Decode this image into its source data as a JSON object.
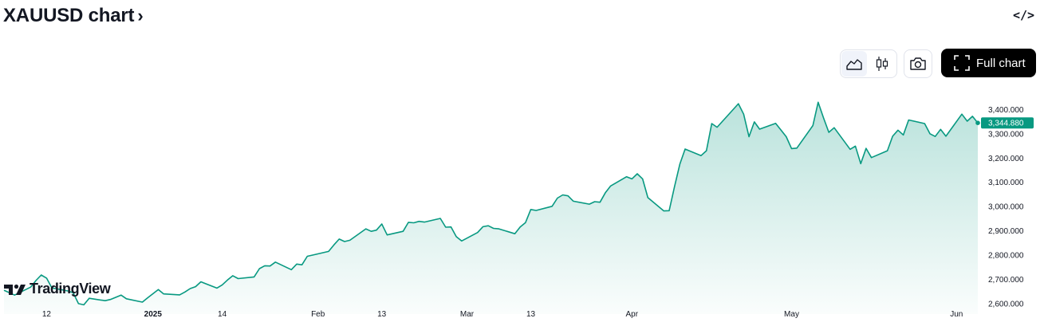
{
  "header": {
    "title": "XAUUSD chart",
    "title_chevron": "›",
    "embed_label": "</>"
  },
  "toolbar": {
    "chart_style_icons": [
      "area-chart-icon",
      "candlestick-icon"
    ],
    "screenshot_icon": "camera-icon",
    "full_chart_label": "Full chart"
  },
  "watermark": {
    "text": "TradingView",
    "logo_icon": "tradingview-logo-icon"
  },
  "colors": {
    "line": "#089981",
    "area_top": "#089981",
    "badge": "#089981",
    "button_bg": "#000000"
  },
  "chart_data": {
    "type": "area",
    "symbol": "XAUUSD",
    "ylim": [
      2570,
      3490
    ],
    "y_ticks": [
      2600,
      2700,
      2800,
      2900,
      3000,
      3100,
      3200,
      3300,
      3400
    ],
    "y_tick_labels": [
      "2,600.000",
      "2,700.000",
      "2,800.000",
      "2,900.000",
      "3,000.000",
      "3,100.000",
      "3,200.000",
      "3,300.000",
      "3,400.000"
    ],
    "x_tick_labels": [
      "12",
      "2025",
      "14",
      "Feb",
      "13",
      "Mar",
      "13",
      "Apr",
      "May",
      "Jun"
    ],
    "x_tick_dates": [
      "2024-12-12",
      "2025-01-01",
      "2025-01-14",
      "2025-02-01",
      "2025-02-13",
      "2025-03-01",
      "2025-03-13",
      "2025-04-01",
      "2025-05-01",
      "2025-06-01"
    ],
    "bold_x_labels": [
      "2025"
    ],
    "last_price": 3344.88,
    "last_price_label": "3,344.880",
    "series": [
      {
        "points": [
          [
            "2024-12-04",
            2655
          ],
          [
            "2024-12-06",
            2635
          ],
          [
            "2024-12-09",
            2668
          ],
          [
            "2024-12-10",
            2695
          ],
          [
            "2024-12-11",
            2718
          ],
          [
            "2024-12-12",
            2705
          ],
          [
            "2024-12-13",
            2665
          ],
          [
            "2024-12-16",
            2652
          ],
          [
            "2024-12-17",
            2645
          ],
          [
            "2024-12-18",
            2600
          ],
          [
            "2024-12-19",
            2595
          ],
          [
            "2024-12-20",
            2622
          ],
          [
            "2024-12-23",
            2612
          ],
          [
            "2024-12-24",
            2617
          ],
          [
            "2024-12-26",
            2635
          ],
          [
            "2024-12-27",
            2620
          ],
          [
            "2024-12-30",
            2606
          ],
          [
            "2024-12-31",
            2624
          ],
          [
            "2025-01-02",
            2658
          ],
          [
            "2025-01-03",
            2640
          ],
          [
            "2025-01-06",
            2636
          ],
          [
            "2025-01-07",
            2648
          ],
          [
            "2025-01-08",
            2662
          ],
          [
            "2025-01-09",
            2670
          ],
          [
            "2025-01-10",
            2690
          ],
          [
            "2025-01-13",
            2664
          ],
          [
            "2025-01-14",
            2677
          ],
          [
            "2025-01-15",
            2697
          ],
          [
            "2025-01-16",
            2715
          ],
          [
            "2025-01-17",
            2703
          ],
          [
            "2025-01-20",
            2710
          ],
          [
            "2025-01-21",
            2744
          ],
          [
            "2025-01-22",
            2756
          ],
          [
            "2025-01-23",
            2755
          ],
          [
            "2025-01-24",
            2771
          ],
          [
            "2025-01-27",
            2740
          ],
          [
            "2025-01-28",
            2763
          ],
          [
            "2025-01-29",
            2760
          ],
          [
            "2025-01-30",
            2795
          ],
          [
            "2025-01-31",
            2800
          ],
          [
            "2025-02-03",
            2815
          ],
          [
            "2025-02-04",
            2842
          ],
          [
            "2025-02-05",
            2866
          ],
          [
            "2025-02-06",
            2856
          ],
          [
            "2025-02-07",
            2861
          ],
          [
            "2025-02-10",
            2908
          ],
          [
            "2025-02-11",
            2898
          ],
          [
            "2025-02-12",
            2903
          ],
          [
            "2025-02-13",
            2928
          ],
          [
            "2025-02-14",
            2883
          ],
          [
            "2025-02-17",
            2898
          ],
          [
            "2025-02-18",
            2935
          ],
          [
            "2025-02-19",
            2933
          ],
          [
            "2025-02-20",
            2939
          ],
          [
            "2025-02-21",
            2936
          ],
          [
            "2025-02-24",
            2951
          ],
          [
            "2025-02-25",
            2915
          ],
          [
            "2025-02-26",
            2916
          ],
          [
            "2025-02-27",
            2876
          ],
          [
            "2025-02-28",
            2858
          ],
          [
            "2025-03-03",
            2893
          ],
          [
            "2025-03-04",
            2917
          ],
          [
            "2025-03-05",
            2921
          ],
          [
            "2025-03-06",
            2910
          ],
          [
            "2025-03-07",
            2908
          ],
          [
            "2025-03-10",
            2888
          ],
          [
            "2025-03-11",
            2916
          ],
          [
            "2025-03-12",
            2934
          ],
          [
            "2025-03-13",
            2988
          ],
          [
            "2025-03-14",
            2984
          ],
          [
            "2025-03-17",
            3001
          ],
          [
            "2025-03-18",
            3035
          ],
          [
            "2025-03-19",
            3048
          ],
          [
            "2025-03-20",
            3044
          ],
          [
            "2025-03-21",
            3022
          ],
          [
            "2025-03-24",
            3010
          ],
          [
            "2025-03-25",
            3020
          ],
          [
            "2025-03-26",
            3018
          ],
          [
            "2025-03-27",
            3057
          ],
          [
            "2025-03-28",
            3085
          ],
          [
            "2025-03-31",
            3123
          ],
          [
            "2025-04-01",
            3114
          ],
          [
            "2025-04-02",
            3135
          ],
          [
            "2025-04-03",
            3114
          ],
          [
            "2025-04-04",
            3037
          ],
          [
            "2025-04-07",
            2982
          ],
          [
            "2025-04-08",
            2983
          ],
          [
            "2025-04-09",
            3082
          ],
          [
            "2025-04-10",
            3175
          ],
          [
            "2025-04-11",
            3237
          ],
          [
            "2025-04-14",
            3210
          ],
          [
            "2025-04-15",
            3230
          ],
          [
            "2025-04-16",
            3342
          ],
          [
            "2025-04-17",
            3327
          ],
          [
            "2025-04-21",
            3424
          ],
          [
            "2025-04-22",
            3381
          ],
          [
            "2025-04-23",
            3288
          ],
          [
            "2025-04-24",
            3349
          ],
          [
            "2025-04-25",
            3319
          ],
          [
            "2025-04-28",
            3343
          ],
          [
            "2025-04-29",
            3316
          ],
          [
            "2025-04-30",
            3288
          ],
          [
            "2025-05-01",
            3239
          ],
          [
            "2025-05-02",
            3241
          ],
          [
            "2025-05-05",
            3334
          ],
          [
            "2025-05-06",
            3430
          ],
          [
            "2025-05-07",
            3366
          ],
          [
            "2025-05-08",
            3306
          ],
          [
            "2025-05-09",
            3325
          ],
          [
            "2025-05-12",
            3236
          ],
          [
            "2025-05-13",
            3249
          ],
          [
            "2025-05-14",
            3177
          ],
          [
            "2025-05-15",
            3240
          ],
          [
            "2025-05-16",
            3202
          ],
          [
            "2025-05-19",
            3230
          ],
          [
            "2025-05-20",
            3290
          ],
          [
            "2025-05-21",
            3315
          ],
          [
            "2025-05-22",
            3295
          ],
          [
            "2025-05-23",
            3357
          ],
          [
            "2025-05-26",
            3342
          ],
          [
            "2025-05-27",
            3300
          ],
          [
            "2025-05-28",
            3289
          ],
          [
            "2025-05-29",
            3318
          ],
          [
            "2025-05-30",
            3290
          ],
          [
            "2025-06-02",
            3381
          ],
          [
            "2025-06-03",
            3352
          ],
          [
            "2025-06-04",
            3372
          ],
          [
            "2025-06-05",
            3344.88
          ]
        ]
      }
    ]
  }
}
